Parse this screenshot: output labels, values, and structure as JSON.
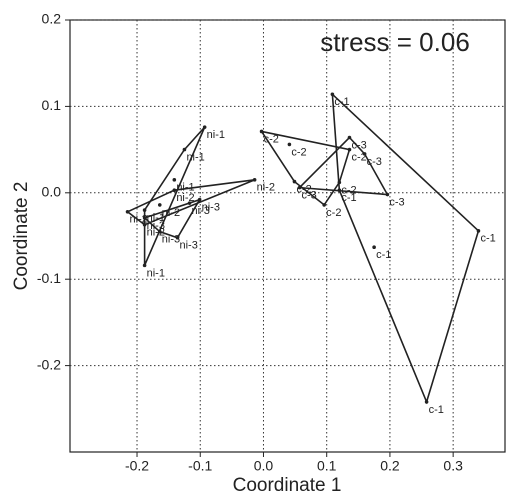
{
  "chart_data": {
    "type": "scatter",
    "annotation": "stress = 0.06",
    "x_label": "Coordinate 1",
    "y_label": "Coordinate 2",
    "xlim": [
      -0.306,
      0.382
    ],
    "ylim": [
      -0.3,
      0.2
    ],
    "xticks": [
      -0.2,
      -0.1,
      {
        "value": 0,
        "label": "0.0"
      },
      0.1,
      0.2,
      0.3
    ],
    "yticks": [
      0.2,
      0.1,
      {
        "value": 0,
        "label": "0.0"
      },
      -0.1,
      -0.2
    ],
    "grid": true,
    "color": "#222222",
    "series": [
      {
        "name": "c-1",
        "x": [
          0.109,
          0.34,
          0.258,
          0.175,
          0.12
        ],
        "y": [
          0.114,
          -0.044,
          -0.242,
          -0.063,
          0.003
        ]
      },
      {
        "name": "c-2",
        "x": [
          -0.003,
          0.041,
          0.136,
          0.12,
          0.096,
          0.049
        ],
        "y": [
          0.071,
          0.056,
          0.05,
          0.012,
          -0.014,
          0.013
        ]
      },
      {
        "name": "c-3",
        "x": [
          0.136,
          0.196,
          0.057,
          0.16
        ],
        "y": [
          0.064,
          -0.002,
          0.006,
          0.045
        ]
      },
      {
        "name": "ni-1",
        "x": [
          -0.093,
          -0.125,
          -0.188,
          -0.188,
          -0.141
        ],
        "y": [
          0.076,
          0.05,
          -0.02,
          -0.084,
          0.015
        ]
      },
      {
        "name": "ni-2",
        "x": [
          -0.014,
          -0.215,
          -0.164,
          -0.141,
          -0.188
        ],
        "y": [
          0.015,
          -0.022,
          -0.014,
          0.003,
          -0.037
        ]
      },
      {
        "name": "ni-3",
        "x": [
          -0.117,
          -0.136,
          -0.188,
          -0.101,
          -0.164
        ],
        "y": [
          -0.012,
          -0.052,
          -0.029,
          -0.008,
          -0.045
        ]
      }
    ]
  }
}
